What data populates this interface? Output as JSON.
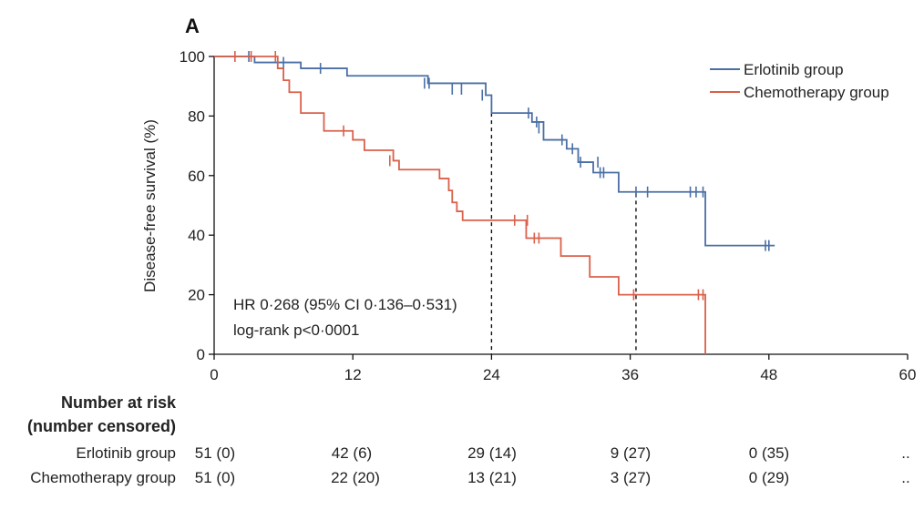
{
  "chart_data": {
    "type": "line",
    "panel_label": "A",
    "ylabel": "Disease-free survival (%)",
    "xlabel": "",
    "xlim": [
      0,
      60
    ],
    "ylim": [
      0,
      100
    ],
    "xticks": [
      0,
      12,
      24,
      36,
      48,
      60
    ],
    "yticks": [
      0,
      20,
      40,
      60,
      80,
      100
    ],
    "legend_position": "top-right",
    "annotations": [
      "HR 0·268 (95% CI 0·136–0·531)",
      "log-rank p<0·0001"
    ],
    "median_markers": [
      {
        "x": 24,
        "y": 81
      },
      {
        "x": 36.5,
        "y": 54
      }
    ],
    "series": [
      {
        "name": "Erlotinib group",
        "color": "#4a6fa5",
        "steps": [
          [
            0,
            100
          ],
          [
            3.5,
            98
          ],
          [
            7.5,
            96
          ],
          [
            11.5,
            93.5
          ],
          [
            18.5,
            91
          ],
          [
            23.5,
            87
          ],
          [
            24,
            81
          ],
          [
            27.5,
            78
          ],
          [
            28.5,
            72
          ],
          [
            30.5,
            69
          ],
          [
            31.5,
            64.5
          ],
          [
            32.8,
            61
          ],
          [
            35,
            54.5
          ],
          [
            42.5,
            36.5
          ],
          [
            48.5,
            36.5
          ]
        ],
        "censors": [
          [
            3,
            100
          ],
          [
            6,
            98
          ],
          [
            9.2,
            96
          ],
          [
            18.2,
            91
          ],
          [
            18.6,
            91
          ],
          [
            20.6,
            89
          ],
          [
            21.4,
            89
          ],
          [
            23.2,
            87
          ],
          [
            27.2,
            81
          ],
          [
            27.9,
            78
          ],
          [
            28.1,
            76
          ],
          [
            30.1,
            72
          ],
          [
            31,
            69
          ],
          [
            31.7,
            64.5
          ],
          [
            33.2,
            64.5
          ],
          [
            33.4,
            61
          ],
          [
            33.7,
            61
          ],
          [
            36.5,
            54.5
          ],
          [
            37.5,
            54.5
          ],
          [
            41.2,
            54.5
          ],
          [
            41.7,
            54.5
          ],
          [
            42.3,
            54.5
          ],
          [
            47.7,
            36.5
          ],
          [
            48,
            36.5
          ]
        ]
      },
      {
        "name": "Chemotherapy group",
        "color": "#d9604a",
        "steps": [
          [
            0,
            100
          ],
          [
            5.5,
            96
          ],
          [
            6,
            92
          ],
          [
            6.5,
            88
          ],
          [
            7.5,
            81
          ],
          [
            9.5,
            75
          ],
          [
            12,
            72
          ],
          [
            13,
            68.5
          ],
          [
            15.5,
            65
          ],
          [
            16,
            62
          ],
          [
            19.5,
            59
          ],
          [
            20.3,
            55
          ],
          [
            20.6,
            51
          ],
          [
            21,
            48
          ],
          [
            21.5,
            45
          ],
          [
            27,
            39
          ],
          [
            30,
            33
          ],
          [
            32.5,
            26
          ],
          [
            35,
            20
          ],
          [
            42.5,
            20
          ],
          [
            42.5,
            0
          ]
        ],
        "censors": [
          [
            1.8,
            100
          ],
          [
            3.2,
            100
          ],
          [
            5.3,
            100
          ],
          [
            11.2,
            75
          ],
          [
            15.2,
            65
          ],
          [
            26,
            45
          ],
          [
            27.1,
            45
          ],
          [
            27.7,
            39
          ],
          [
            28.1,
            39
          ],
          [
            36.3,
            20
          ],
          [
            41.9,
            20
          ],
          [
            42.3,
            20
          ]
        ]
      }
    ]
  },
  "risk_table": {
    "title_line1": "Number at risk",
    "title_line2": "(number censored)",
    "rows": [
      {
        "label": "Erlotinib group",
        "values": [
          "51 (0)",
          "42 (6)",
          "29 (14)",
          "9 (27)",
          "0 (35)",
          ".."
        ]
      },
      {
        "label": "Chemotherapy group",
        "values": [
          "51 (0)",
          "22 (20)",
          "13 (21)",
          "3 (27)",
          "0 (29)",
          ".."
        ]
      }
    ]
  }
}
